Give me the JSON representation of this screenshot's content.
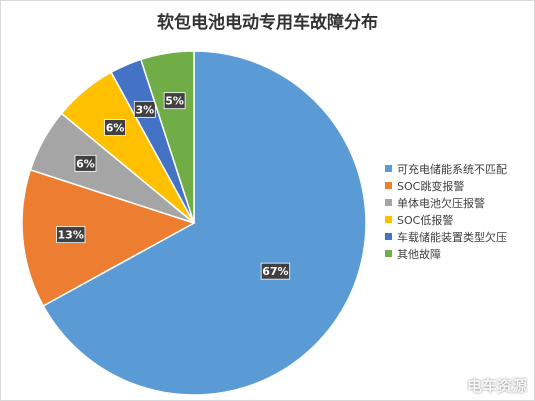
{
  "chart_data": {
    "type": "pie",
    "title": "软包电池电动专用车故障分布",
    "categories": [
      "可充电储能系统不匹配",
      "SOC跳变报警",
      "单体电池欠压报警",
      "SOC低报警",
      "车载储能装置类型欠压",
      "其他故障"
    ],
    "values": [
      67,
      13,
      6,
      6,
      3,
      5
    ],
    "labels": [
      "67%",
      "13%",
      "6%",
      "6%",
      "3%",
      "5%"
    ],
    "colors": [
      "#5b9bd5",
      "#ed7d31",
      "#a5a5a5",
      "#ffc000",
      "#4472c4",
      "#70ad47"
    ],
    "legend_position": "right"
  },
  "watermark": "电车资源"
}
